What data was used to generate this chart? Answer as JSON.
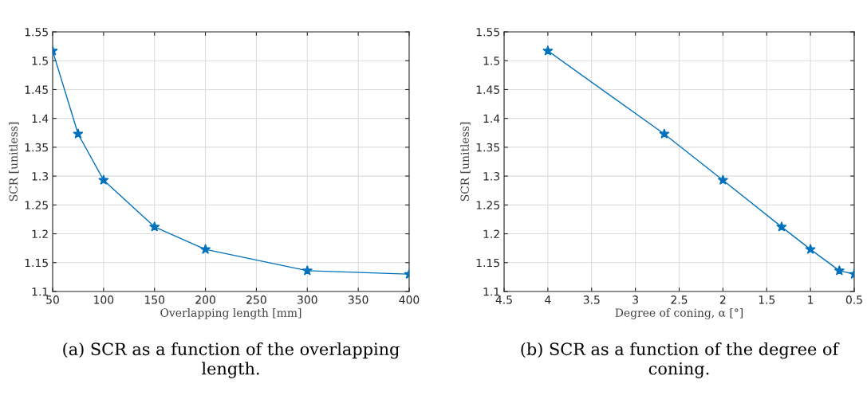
{
  "chart_data": [
    {
      "type": "line",
      "xlabel": "Overlapping length [mm]",
      "ylabel": "SCR [unitless]",
      "x": [
        50,
        75,
        100,
        150,
        200,
        300,
        400
      ],
      "series": [
        {
          "color": "#0072bd",
          "values": [
            1.517,
            1.373,
            1.293,
            1.212,
            1.173,
            1.136,
            1.13
          ]
        }
      ],
      "xlim": [
        50,
        400
      ],
      "xticks": [
        50,
        100,
        150,
        200,
        250,
        300,
        350,
        400
      ],
      "ylim": [
        1.1,
        1.55
      ],
      "yticks": [
        1.1,
        1.15,
        1.2,
        1.25,
        1.3,
        1.35,
        1.4,
        1.45,
        1.5,
        1.55
      ],
      "grid": true,
      "marker": "star",
      "line_style": "solid",
      "annotations": [
        "(a) SCR as a function of the overlapping\nlength."
      ]
    },
    {
      "type": "line",
      "xlabel": "Degree of coning, α [°]",
      "ylabel": "SCR [unitless]",
      "x": [
        4,
        2.67,
        2,
        1.33,
        1,
        0.67,
        0.5
      ],
      "series": [
        {
          "color": "#0072bd",
          "values": [
            1.517,
            1.373,
            1.293,
            1.212,
            1.173,
            1.136,
            1.13
          ]
        }
      ],
      "xlim": [
        4.5,
        0.5
      ],
      "xticks": [
        4.5,
        4,
        3.5,
        3,
        2.5,
        2,
        1.5,
        1,
        0.5
      ],
      "ylim": [
        1.1,
        1.55
      ],
      "yticks": [
        1.1,
        1.15,
        1.2,
        1.25,
        1.3,
        1.35,
        1.4,
        1.45,
        1.5,
        1.55
      ],
      "grid": true,
      "marker": "star",
      "line_style": "solid",
      "annotations": [
        "(b) SCR as a function of the degree of\nconing."
      ]
    }
  ]
}
